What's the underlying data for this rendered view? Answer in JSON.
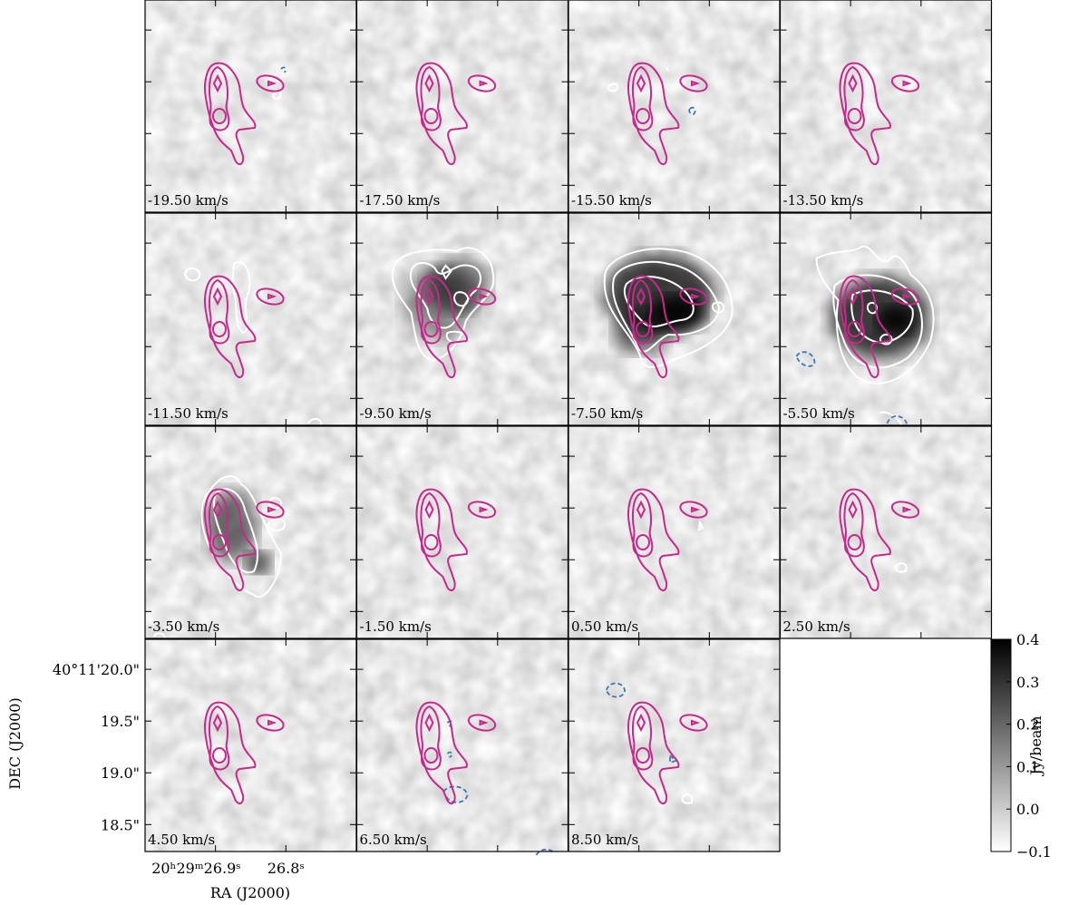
{
  "chart_data": {
    "type": "channel-map",
    "xlabel": "RA (J2000)",
    "ylabel": "DEC (J2000)",
    "xlim": [
      27.0,
      26.7
    ],
    "xticks": [
      {
        "value": 26.9,
        "label": "20ʰ29ᵐ26.9ˢ"
      },
      {
        "value": 26.8,
        "label": "26.8ˢ"
      }
    ],
    "ylim": [
      18.24,
      20.29
    ],
    "yticks": [
      {
        "value": 20.0,
        "label": "40°11'20.0\""
      },
      {
        "value": 19.5,
        "label": "19.5\""
      },
      {
        "value": 19.0,
        "label": "19.0\""
      },
      {
        "value": 18.5,
        "label": "18.5\""
      }
    ],
    "panels": [
      "-19.50 km/s",
      "-17.50 km/s",
      "-15.50 km/s",
      "-13.50 km/s",
      "-11.50 km/s",
      "-9.50 km/s",
      "-7.50 km/s",
      "-5.50 km/s",
      "-3.50 km/s",
      "-1.50 km/s",
      "0.50 km/s",
      "2.50 km/s",
      "4.50 km/s",
      "6.50 km/s",
      "8.50 km/s"
    ],
    "colorbar": {
      "label": "Jy/beam",
      "clim": [
        -0.1,
        0.4
      ],
      "colors": [
        "#ffffff",
        "#000000"
      ],
      "ticks": [
        {
          "value": -0.1,
          "label": "−0.1"
        },
        {
          "value": 0.0,
          "label": "0.0"
        },
        0.1,
        0.2,
        0.3,
        0.4
      ]
    }
  }
}
